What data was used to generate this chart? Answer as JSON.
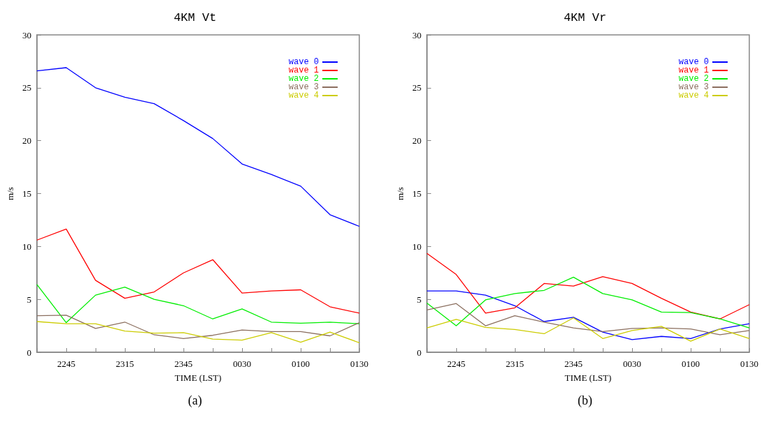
{
  "chart_data": [
    {
      "type": "line",
      "title": "4KM Vt",
      "xlabel": "TIME (LST)",
      "ylabel": "m/s",
      "annotations": [
        "(a)"
      ],
      "categories": [
        null,
        "2245",
        null,
        "2315",
        null,
        "2345",
        null,
        "0030",
        null,
        "0100",
        null,
        "0130"
      ],
      "ylim": [
        0,
        30
      ],
      "yticks": [
        0,
        5,
        10,
        15,
        20,
        25,
        30
      ],
      "grid": false,
      "legend": "top right",
      "marker": "none",
      "line_style": "solid",
      "series": [
        {
          "name": "wave 0",
          "color": "#0000ff",
          "values": [
            26.6,
            26.9,
            25.0,
            24.1,
            23.5,
            21.9,
            20.2,
            17.8,
            16.8,
            15.7,
            13.0,
            11.9
          ]
        },
        {
          "name": "wave 1",
          "color": "#ff0000",
          "values": [
            10.6,
            11.65,
            6.8,
            5.1,
            5.7,
            7.5,
            8.75,
            5.6,
            5.8,
            5.9,
            4.3,
            3.7
          ]
        },
        {
          "name": "wave 2",
          "color": "#00ee00",
          "values": [
            6.4,
            2.8,
            5.4,
            6.15,
            5.0,
            4.4,
            3.15,
            4.1,
            2.85,
            2.75,
            2.85,
            2.7
          ]
        },
        {
          "name": "wave 3",
          "color": "#8b6f5f",
          "values": [
            3.45,
            3.5,
            2.25,
            2.85,
            1.65,
            1.3,
            1.6,
            2.1,
            1.95,
            1.95,
            1.55,
            2.8
          ]
        },
        {
          "name": "wave 4",
          "color": "#cccc00",
          "values": [
            2.9,
            2.7,
            2.7,
            2.0,
            1.8,
            1.85,
            1.25,
            1.15,
            1.85,
            0.95,
            1.9,
            0.9
          ]
        }
      ]
    },
    {
      "type": "line",
      "title": "4KM Vr",
      "xlabel": "TIME (LST)",
      "ylabel": "m/s",
      "annotations": [
        "(b)"
      ],
      "categories": [
        null,
        "2245",
        null,
        "2315",
        null,
        "2345",
        null,
        "0030",
        null,
        "0100",
        null,
        "0130"
      ],
      "ylim": [
        0,
        30
      ],
      "yticks": [
        0,
        5,
        10,
        15,
        20,
        25,
        30
      ],
      "grid": false,
      "legend": "top right",
      "marker": "none",
      "line_style": "solid",
      "series": [
        {
          "name": "wave 0",
          "color": "#0000ff",
          "values": [
            5.8,
            5.8,
            5.4,
            4.4,
            2.9,
            3.3,
            1.9,
            1.2,
            1.5,
            1.3,
            2.2,
            2.7
          ]
        },
        {
          "name": "wave 1",
          "color": "#ff0000",
          "values": [
            9.35,
            7.35,
            3.7,
            4.2,
            6.5,
            6.25,
            7.15,
            6.5,
            5.1,
            3.8,
            3.15,
            4.5
          ]
        },
        {
          "name": "wave 2",
          "color": "#00ee00",
          "values": [
            4.65,
            2.5,
            4.95,
            5.55,
            5.85,
            7.1,
            5.55,
            4.95,
            3.8,
            3.75,
            3.15,
            2.3
          ]
        },
        {
          "name": "wave 3",
          "color": "#8b6f5f",
          "values": [
            4.0,
            4.6,
            2.5,
            3.45,
            2.85,
            2.3,
            1.95,
            2.25,
            2.3,
            2.2,
            1.65,
            2.05
          ]
        },
        {
          "name": "wave 4",
          "color": "#cccc00",
          "values": [
            2.3,
            3.1,
            2.35,
            2.15,
            1.75,
            3.25,
            1.3,
            2.05,
            2.45,
            1.05,
            2.2,
            1.3
          ]
        }
      ]
    }
  ]
}
